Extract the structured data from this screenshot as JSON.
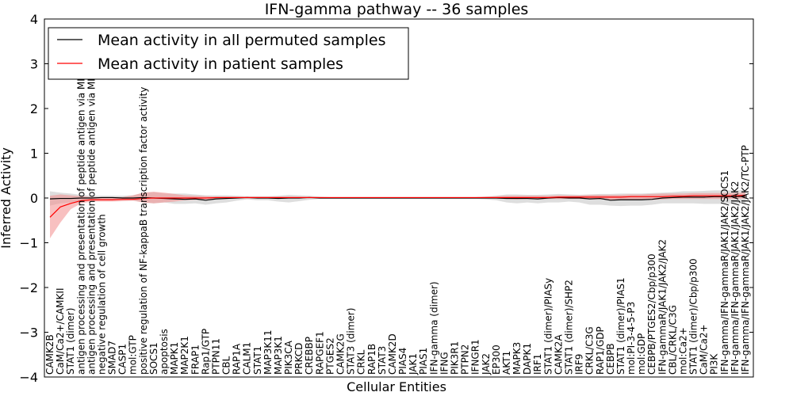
{
  "chart_data": {
    "type": "line",
    "title": "IFN-gamma pathway -- 36 samples",
    "xlabel": "Cellular Entities",
    "ylabel": "Inferred Activity",
    "ylim": [
      -4,
      4
    ],
    "yticks": [
      -4,
      -3,
      -2,
      -1,
      0,
      1,
      2,
      3,
      4
    ],
    "ytick_labels": [
      "−4",
      "−3",
      "−2",
      "−1",
      "0",
      "1",
      "2",
      "3",
      "4"
    ],
    "legend_position": "top-left",
    "categories": [
      "CAMK2B",
      "CaM/Ca2+/CAMKII",
      "STAT1 (dimer)",
      "antigen processing and presentation of peptide antigen via MHC class I",
      "antigen processing and presentation of peptide antigen via MHC class II",
      "negative regulation of cell growth",
      "SMAD7",
      "CASP1",
      "mol:GTP",
      "positive regulation of NF-kappaB transcription factor activity",
      "SOCS1",
      "apoptosis",
      "MAPK1",
      "MAP2K1",
      "FRAP1",
      "Rap1/GTP",
      "PTPN11",
      "CBL",
      "RAP1A",
      "CALM1",
      "STAT1",
      "MAP3K11",
      "MAP3K1",
      "PIK3CA",
      "PRKCD",
      "CREBBP",
      "RAPGEF1",
      "PTGES2",
      "CAMK2G",
      "STAT3 (dimer)",
      "CRKL",
      "RAP1B",
      "STAT3",
      "CAMK2D",
      "PIAS4",
      "JAK1",
      "PIAS1",
      "IFN-gamma (dimer)",
      "IFNG",
      "PIK3R1",
      "PTPN2",
      "IFNGR1",
      "JAK2",
      "EP300",
      "AKT1",
      "MAPK3",
      "DAPK1",
      "IRF1",
      "STAT1 (dimer)/PIASy",
      "CAMK2A",
      "STAT1 (dimer)/SHP2",
      "IRF9",
      "CRKL/C3G",
      "RAP1/GDP",
      "CEBPB",
      "STAT1 (dimer)/PIAS1",
      "mol:PI-3-4-5-P3",
      "mol:GDP",
      "CEBPB/PTGES2/Cbp/p300",
      "IFN-gammaR/JAK1/JAK2/JAK2",
      "CBL/CRKL/C3G",
      "mol:Ca2+",
      "STAT1 (dimer)/Cbp/p300",
      "CaM/Ca2+",
      "PI3K",
      "IFN-gamma/IFN-gammaR/JAK1/JAK2/SOCS1",
      "IFN-gamma/IFN-gammaR/JAK1/JAK2/JAK2",
      "IFN-gamma/IFN-gammaR/JAK1/JAK2/JAK2/TC-PTP"
    ],
    "series": [
      {
        "name": "Mean activity in all permuted samples",
        "color": "#000000",
        "values": [
          -0.02,
          -0.01,
          -0.01,
          0.0,
          0.0,
          0.01,
          0.01,
          0.0,
          0.0,
          0.01,
          0.0,
          -0.01,
          -0.02,
          -0.03,
          -0.02,
          -0.05,
          -0.02,
          -0.01,
          0.0,
          0.01,
          0.0,
          0.0,
          -0.01,
          0.0,
          0.0,
          0.01,
          0.0,
          0.0,
          0.0,
          0.0,
          0.0,
          0.0,
          0.0,
          0.0,
          0.0,
          0.0,
          0.0,
          0.0,
          0.0,
          0.0,
          0.0,
          0.0,
          0.0,
          0.0,
          -0.01,
          -0.01,
          -0.01,
          -0.02,
          0.0,
          0.01,
          0.0,
          0.0,
          -0.02,
          -0.01,
          -0.05,
          -0.04,
          -0.04,
          -0.04,
          -0.03,
          0.0,
          0.01,
          0.02,
          0.02,
          0.02,
          0.03,
          0.03,
          0.03,
          0.04
        ],
        "band_low": [
          -0.17,
          -0.12,
          -0.1,
          -0.06,
          -0.04,
          -0.03,
          -0.03,
          -0.04,
          -0.05,
          -0.1,
          -0.12,
          -0.1,
          -0.13,
          -0.13,
          -0.12,
          -0.15,
          -0.12,
          -0.1,
          -0.06,
          -0.03,
          -0.05,
          -0.05,
          -0.08,
          -0.1,
          -0.07,
          -0.04,
          -0.02,
          -0.02,
          -0.02,
          -0.02,
          -0.02,
          -0.02,
          -0.02,
          -0.02,
          -0.02,
          -0.02,
          -0.02,
          -0.02,
          -0.02,
          -0.02,
          -0.02,
          -0.02,
          -0.03,
          -0.05,
          -0.1,
          -0.12,
          -0.1,
          -0.12,
          -0.1,
          -0.1,
          -0.08,
          -0.1,
          -0.15,
          -0.15,
          -0.17,
          -0.18,
          -0.17,
          -0.17,
          -0.15,
          -0.12,
          -0.12,
          -0.12,
          -0.12,
          -0.13,
          -0.13,
          -0.13,
          -0.13,
          -0.12
        ],
        "band_high": [
          0.15,
          0.12,
          0.1,
          0.07,
          0.05,
          0.05,
          0.05,
          0.05,
          0.06,
          0.12,
          0.13,
          0.1,
          0.1,
          0.1,
          0.08,
          0.06,
          0.06,
          0.06,
          0.05,
          0.04,
          0.04,
          0.04,
          0.05,
          0.07,
          0.06,
          0.05,
          0.03,
          0.02,
          0.02,
          0.02,
          0.02,
          0.02,
          0.02,
          0.02,
          0.02,
          0.02,
          0.02,
          0.02,
          0.02,
          0.02,
          0.02,
          0.02,
          0.03,
          0.05,
          0.08,
          0.08,
          0.07,
          0.07,
          0.08,
          0.09,
          0.08,
          0.07,
          0.08,
          0.09,
          0.09,
          0.1,
          0.1,
          0.1,
          0.11,
          0.12,
          0.13,
          0.15,
          0.15,
          0.16,
          0.17,
          0.17,
          0.17,
          0.18
        ]
      },
      {
        "name": "Mean activity in patient samples",
        "color": "#ff0000",
        "values": [
          -0.43,
          -0.2,
          -0.12,
          -0.06,
          -0.04,
          -0.04,
          -0.04,
          -0.03,
          -0.03,
          -0.01,
          0.0,
          0.0,
          0.0,
          0.0,
          0.0,
          0.0,
          0.01,
          0.01,
          0.01,
          0.01,
          0.01,
          0.01,
          0.01,
          0.01,
          0.01,
          0.01,
          0.01,
          0.01,
          0.01,
          0.01,
          0.01,
          0.01,
          0.01,
          0.01,
          0.01,
          0.01,
          0.01,
          0.01,
          0.01,
          0.01,
          0.01,
          0.01,
          0.01,
          0.01,
          0.01,
          0.01,
          0.01,
          0.01,
          0.01,
          0.02,
          0.02,
          0.02,
          0.02,
          0.02,
          0.02,
          0.02,
          0.03,
          0.03,
          0.03,
          0.03,
          0.04,
          0.04,
          0.05,
          0.05,
          0.05,
          0.05,
          0.05,
          0.06
        ],
        "band_low": [
          -0.9,
          -0.55,
          -0.25,
          -0.12,
          -0.08,
          -0.08,
          -0.08,
          -0.07,
          -0.06,
          -0.1,
          -0.12,
          -0.1,
          -0.08,
          -0.05,
          -0.04,
          -0.03,
          -0.02,
          -0.02,
          -0.01,
          -0.01,
          -0.01,
          -0.01,
          -0.01,
          -0.01,
          -0.01,
          0.0,
          0.0,
          0.0,
          0.0,
          0.0,
          0.0,
          0.0,
          0.0,
          0.0,
          0.0,
          0.0,
          0.0,
          0.0,
          0.0,
          0.0,
          0.0,
          0.0,
          0.0,
          -0.01,
          -0.02,
          -0.03,
          -0.02,
          -0.03,
          -0.02,
          -0.02,
          -0.02,
          -0.02,
          -0.03,
          -0.03,
          -0.04,
          -0.04,
          -0.04,
          -0.04,
          -0.04,
          -0.03,
          -0.02,
          -0.02,
          -0.02,
          -0.02,
          -0.02,
          -0.02,
          -0.02,
          -0.01
        ],
        "band_high": [
          0.05,
          0.08,
          0.06,
          0.04,
          0.02,
          0.02,
          0.02,
          0.02,
          0.06,
          0.12,
          0.14,
          0.12,
          0.09,
          0.06,
          0.05,
          0.04,
          0.03,
          0.03,
          0.03,
          0.03,
          0.03,
          0.03,
          0.03,
          0.03,
          0.03,
          0.03,
          0.02,
          0.02,
          0.02,
          0.02,
          0.02,
          0.02,
          0.02,
          0.02,
          0.02,
          0.02,
          0.02,
          0.02,
          0.02,
          0.02,
          0.02,
          0.02,
          0.03,
          0.04,
          0.05,
          0.05,
          0.05,
          0.05,
          0.05,
          0.06,
          0.06,
          0.06,
          0.07,
          0.07,
          0.07,
          0.07,
          0.08,
          0.08,
          0.09,
          0.1,
          0.1,
          0.1,
          0.11,
          0.11,
          0.11,
          0.11,
          0.11,
          0.12
        ]
      }
    ]
  }
}
